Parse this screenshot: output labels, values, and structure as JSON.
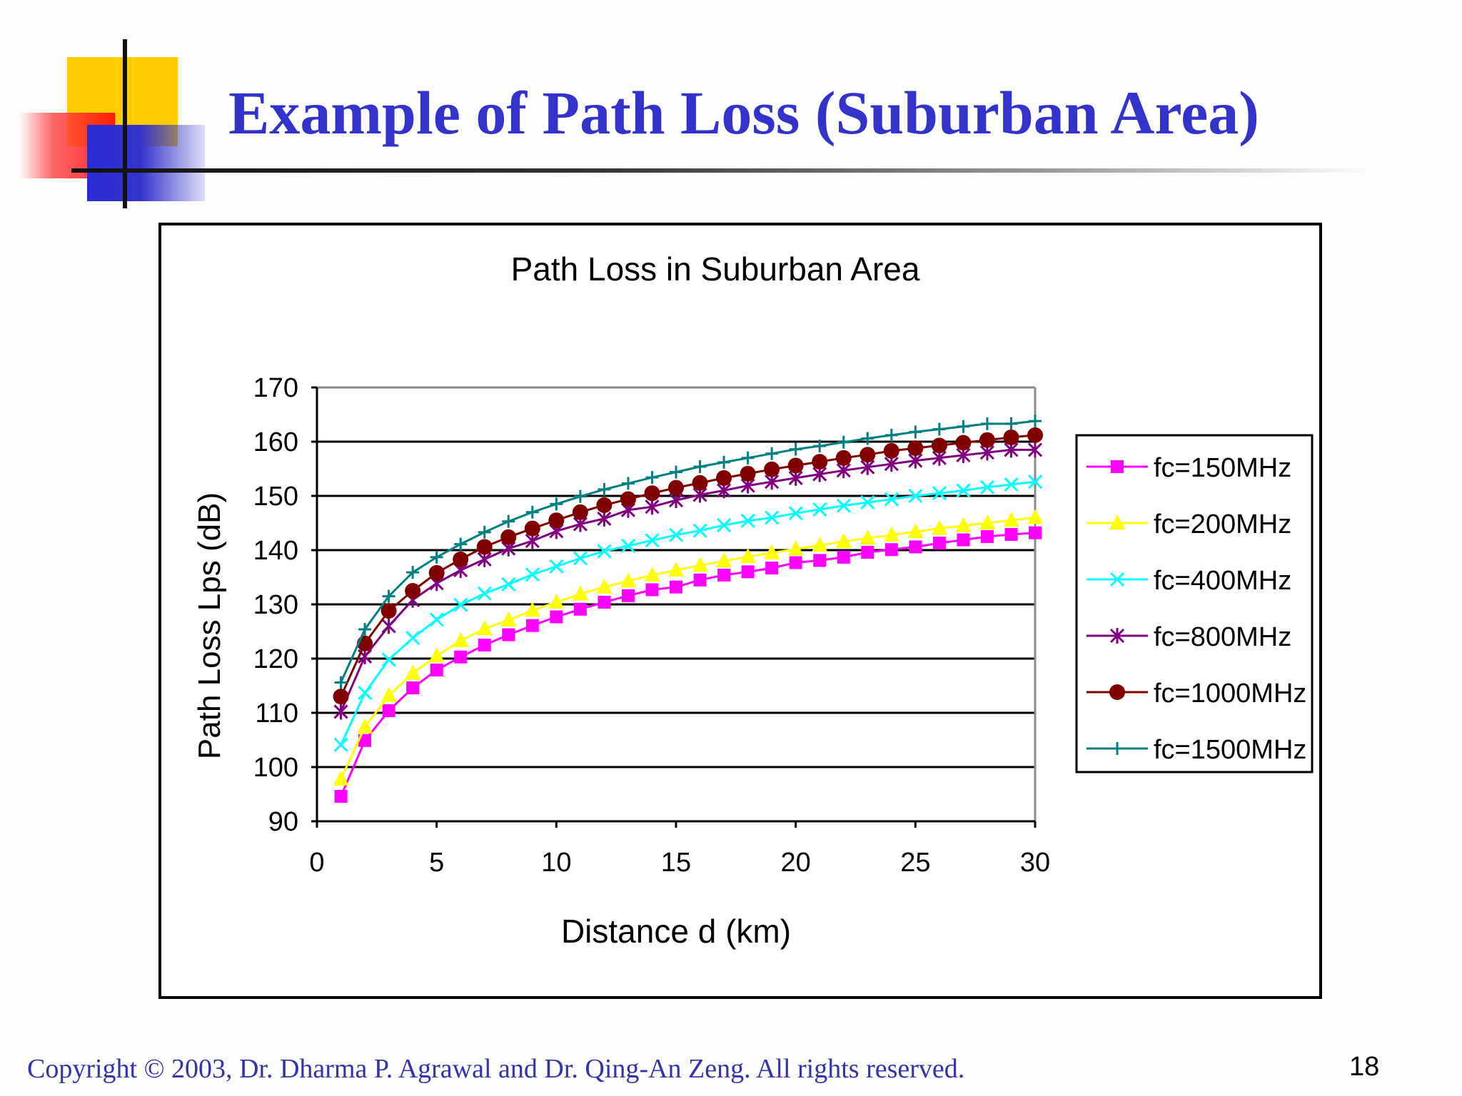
{
  "slide": {
    "title": "Example of Path Loss (Suburban Area)",
    "copyright": "Copyright © 2003, Dr. Dharma P. Agrawal and Dr. Qing-An Zeng. All rights reserved.",
    "page_number": "18",
    "colors": {
      "title": "#3333cc",
      "accent_yellow": "#ffcc00",
      "accent_red": "#ff0000",
      "accent_blue": "#3333cc"
    }
  },
  "chart_data": {
    "type": "line",
    "title": "Path Loss in Suburban Area",
    "xlabel": "Distance d (km)",
    "ylabel": "Path Loss Lps (dB)",
    "xlim": [
      0,
      30
    ],
    "ylim": [
      90,
      170
    ],
    "xticks": [
      0,
      5,
      10,
      15,
      20,
      25,
      30
    ],
    "yticks": [
      90,
      100,
      110,
      120,
      130,
      140,
      150,
      160,
      170
    ],
    "grid": "horizontal",
    "legend_position": "right",
    "x": [
      1,
      2,
      3,
      4,
      5,
      6,
      7,
      8,
      9,
      10,
      11,
      12,
      13,
      14,
      15,
      16,
      17,
      18,
      19,
      20,
      21,
      22,
      23,
      24,
      25,
      26,
      27,
      28,
      29,
      30
    ],
    "series": [
      {
        "name": "fc=150MHz",
        "color": "#ff00ff",
        "marker": "square",
        "values": [
          94.6,
          104.9,
          110.4,
          114.6,
          117.9,
          120.3,
          122.5,
          124.4,
          126.1,
          127.7,
          129.1,
          130.4,
          131.6,
          132.7,
          133.2,
          134.5,
          135.4,
          136.0,
          136.7,
          137.7,
          138.1,
          138.7,
          139.6,
          140.1,
          140.6,
          141.3,
          141.9,
          142.5,
          142.9,
          143.2
        ]
      },
      {
        "name": "fc=200MHz",
        "color": "#ffff00",
        "marker": "triangle",
        "values": [
          97.8,
          107.4,
          113.2,
          117.3,
          120.5,
          123.3,
          125.5,
          127.1,
          128.9,
          130.4,
          131.9,
          133.2,
          134.3,
          135.4,
          136.3,
          137.2,
          138.0,
          138.8,
          139.5,
          140.2,
          140.9,
          141.6,
          142.2,
          142.8,
          143.4,
          144.0,
          144.5,
          145.0,
          145.5,
          146.0
        ]
      },
      {
        "name": "fc=400MHz",
        "color": "#00ffff",
        "marker": "x",
        "values": [
          104.1,
          113.7,
          119.8,
          123.8,
          127.2,
          129.9,
          132.0,
          133.7,
          135.5,
          137.0,
          138.5,
          139.8,
          140.8,
          141.8,
          142.8,
          143.6,
          144.6,
          145.4,
          146.0,
          146.8,
          147.5,
          148.2,
          148.8,
          149.4,
          150.0,
          150.5,
          151.0,
          151.6,
          152.1,
          152.6
        ]
      },
      {
        "name": "fc=800MHz",
        "color": "#800080",
        "marker": "asterisk",
        "values": [
          110.2,
          120.4,
          126.0,
          130.8,
          133.9,
          136.3,
          138.3,
          140.3,
          141.7,
          143.5,
          144.8,
          145.8,
          147.4,
          148.0,
          149.2,
          150.2,
          151.0,
          151.9,
          152.6,
          153.3,
          154.0,
          154.7,
          155.3,
          155.9,
          156.5,
          157.0,
          157.5,
          158.0,
          158.5,
          158.5
        ]
      },
      {
        "name": "fc=1000MHz",
        "color": "#800000",
        "marker": "circle",
        "values": [
          113.0,
          122.8,
          128.8,
          132.5,
          135.8,
          138.3,
          140.6,
          142.4,
          144.0,
          145.5,
          147.0,
          148.3,
          149.4,
          150.5,
          151.5,
          152.4,
          153.3,
          154.1,
          154.9,
          155.6,
          156.3,
          157.0,
          157.6,
          158.3,
          158.8,
          159.3,
          159.8,
          160.3,
          160.8,
          161.2
        ]
      },
      {
        "name": "fc=1500MHz",
        "color": "#008080",
        "marker": "plus",
        "values": [
          115.6,
          125.4,
          131.5,
          135.9,
          138.7,
          141.1,
          143.3,
          145.3,
          147.0,
          148.5,
          149.9,
          151.2,
          152.3,
          153.4,
          154.4,
          155.4,
          156.2,
          157.0,
          157.8,
          158.6,
          159.2,
          159.9,
          160.6,
          161.2,
          161.8,
          162.3,
          162.8,
          163.3,
          163.3,
          163.8
        ]
      }
    ]
  }
}
